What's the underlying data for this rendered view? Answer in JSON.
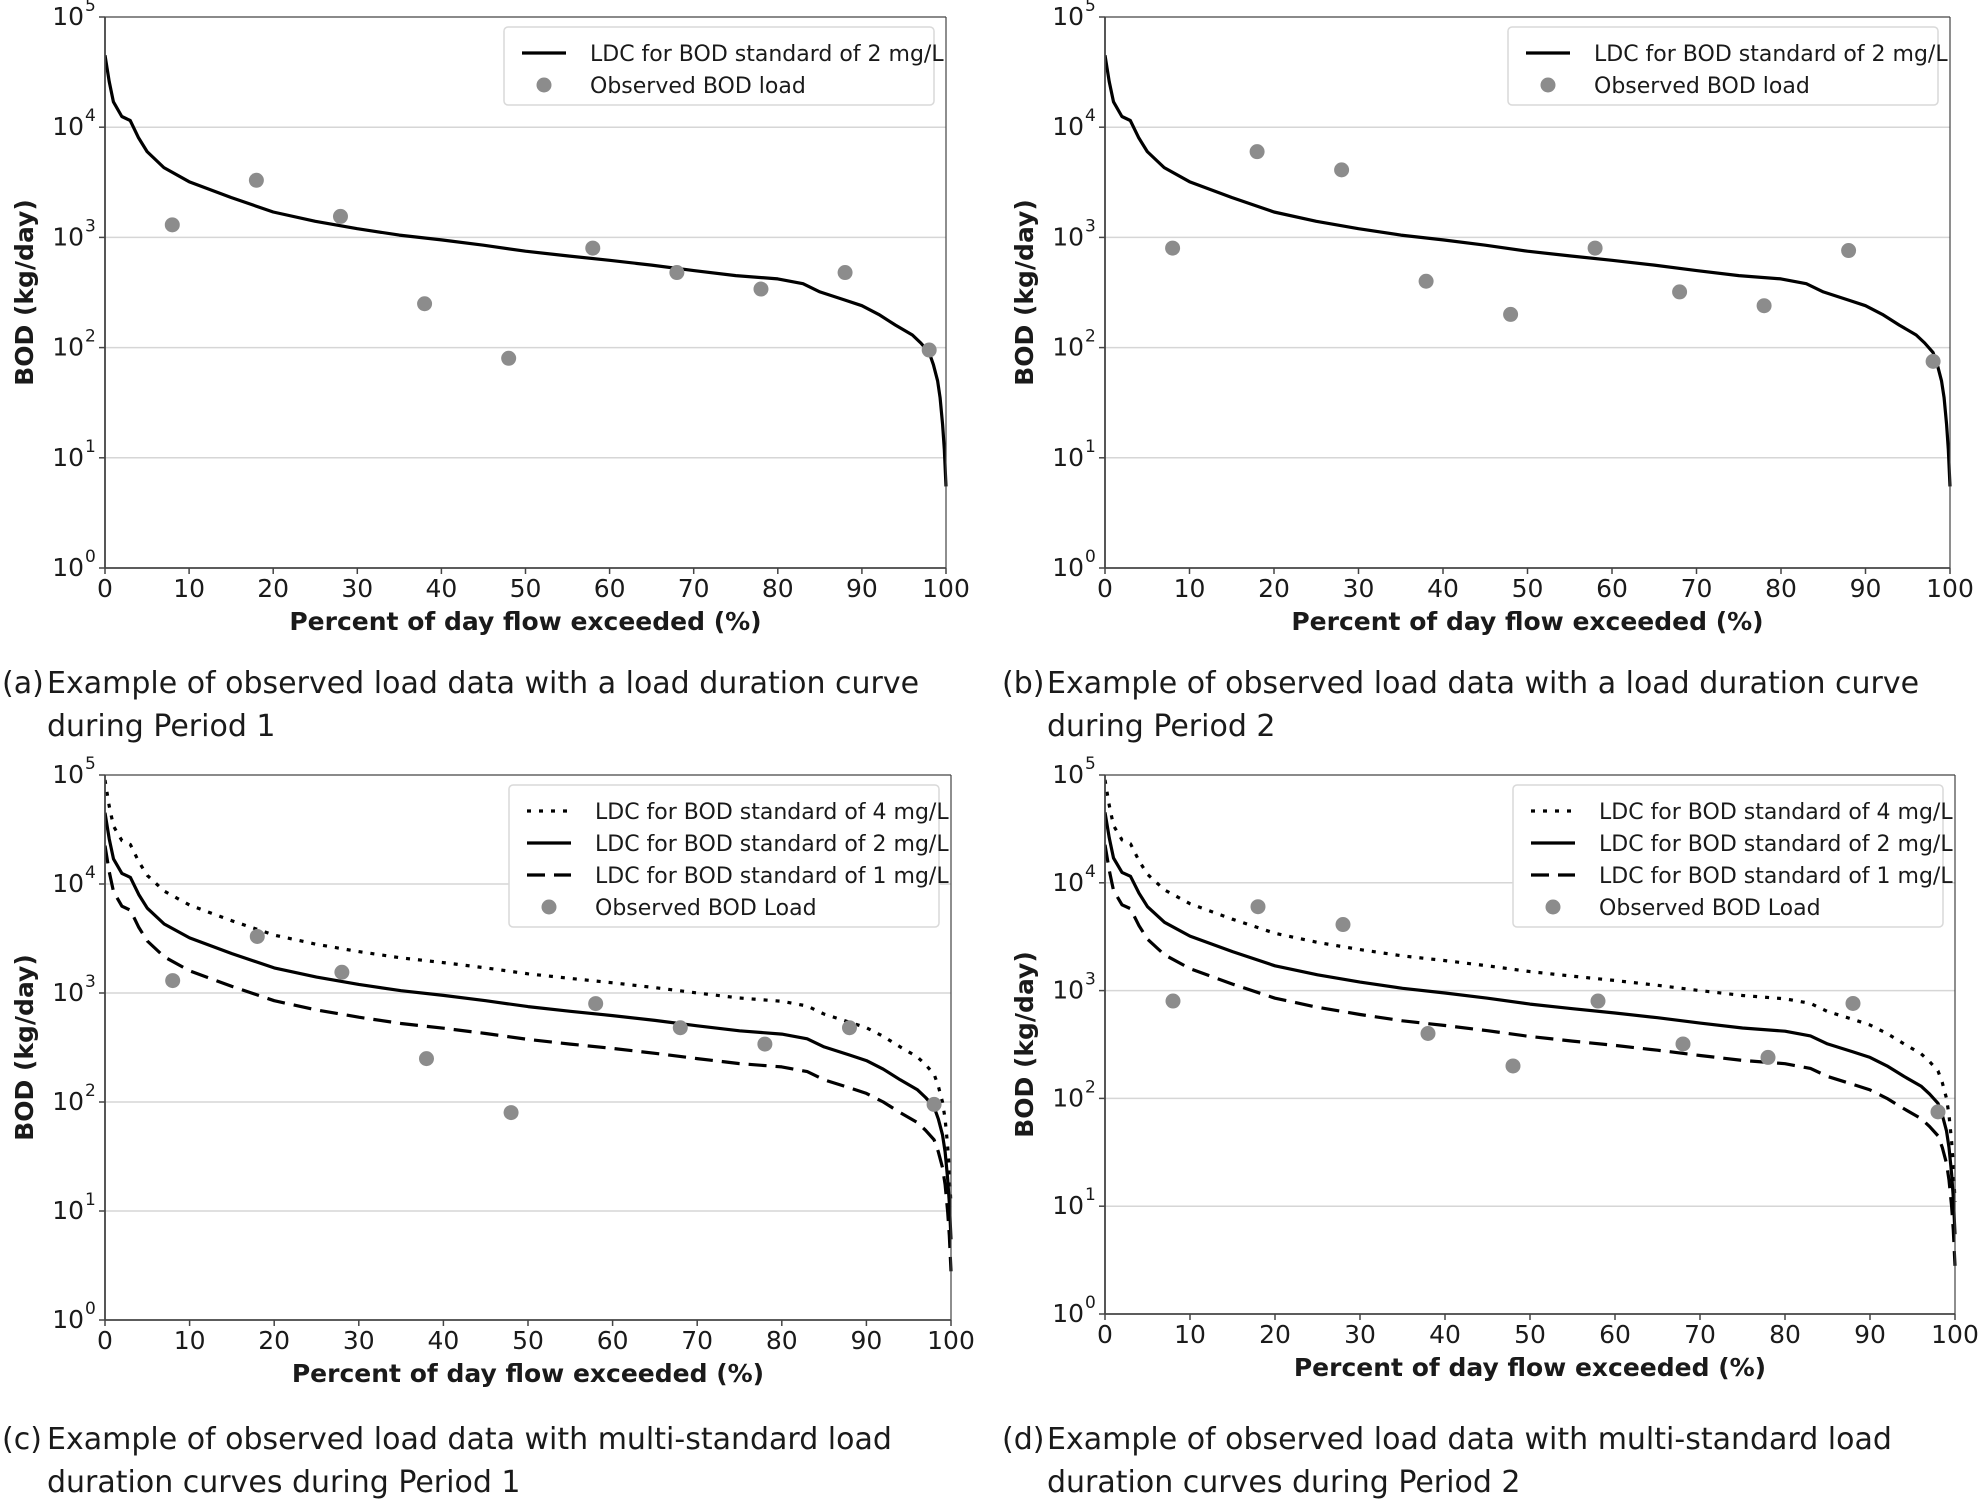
{
  "captions": [
    {
      "tag": "(a)",
      "text": "Example of observed load data with a load duration curve during Period 1"
    },
    {
      "tag": "(b)",
      "text": "Example of observed load data with a load duration curve during Period 2"
    },
    {
      "tag": "(c)",
      "text": "Example of observed load data with multi-standard load duration curves during Period 1"
    },
    {
      "tag": "(d)",
      "text": "Example of observed load data with multi-standard load duration curves during Period 2"
    }
  ],
  "colors": {
    "curve": "#000000",
    "points": "#8c8c8c",
    "grid": "#d6d6d6",
    "frame": "#444444"
  },
  "chart_data": [
    {
      "id": "a",
      "type": "line",
      "xlabel": "Percent of day flow exceeded (%)",
      "ylabel": "BOD (kg/day)",
      "xlim": [
        0,
        100
      ],
      "ylim": [
        1,
        100000
      ],
      "y_scale": "log",
      "x_ticks": [
        "0",
        "10",
        "20",
        "30",
        "40",
        "50",
        "60",
        "70",
        "80",
        "90",
        "100"
      ],
      "y_ticks": [
        {
          "base": "10",
          "exp": "0"
        },
        {
          "base": "10",
          "exp": "1"
        },
        {
          "base": "10",
          "exp": "2"
        },
        {
          "base": "10",
          "exp": "3"
        },
        {
          "base": "10",
          "exp": "4"
        },
        {
          "base": "10",
          "exp": "5"
        }
      ],
      "grid": "horizontal",
      "legend_position": "top-right",
      "series": [
        {
          "name": "LDC for BOD standard of 2 mg/L",
          "kind": "line",
          "style": "solid",
          "x": [
            0,
            0.5,
            1,
            2,
            3,
            4,
            5,
            7,
            10,
            15,
            20,
            25,
            30,
            35,
            40,
            45,
            50,
            55,
            60,
            65,
            70,
            75,
            80,
            83,
            85,
            88,
            90,
            92,
            94,
            96,
            97,
            98,
            98.5,
            99,
            99.3,
            99.6,
            99.8,
            100
          ],
          "y": [
            45000,
            26000,
            17000,
            12500,
            11500,
            8000,
            6000,
            4300,
            3200,
            2300,
            1700,
            1400,
            1200,
            1050,
            950,
            850,
            750,
            680,
            620,
            560,
            500,
            450,
            420,
            380,
            320,
            270,
            240,
            200,
            160,
            130,
            110,
            90,
            70,
            50,
            35,
            20,
            12,
            5.5
          ]
        },
        {
          "name": "Observed BOD load",
          "kind": "scatter",
          "x": [
            8,
            18,
            28,
            38,
            48,
            58,
            68,
            78,
            88,
            98
          ],
          "y": [
            1300,
            3300,
            1550,
            250,
            80,
            800,
            480,
            340,
            480,
            95
          ]
        }
      ]
    },
    {
      "id": "b",
      "type": "line",
      "xlabel": "Percent of day flow exceeded (%)",
      "ylabel": "BOD (kg/day)",
      "xlim": [
        0,
        100
      ],
      "ylim": [
        1,
        100000
      ],
      "y_scale": "log",
      "x_ticks": [
        "0",
        "10",
        "20",
        "30",
        "40",
        "50",
        "60",
        "70",
        "80",
        "90",
        "100"
      ],
      "y_ticks": [
        {
          "base": "10",
          "exp": "0"
        },
        {
          "base": "10",
          "exp": "1"
        },
        {
          "base": "10",
          "exp": "2"
        },
        {
          "base": "10",
          "exp": "3"
        },
        {
          "base": "10",
          "exp": "4"
        },
        {
          "base": "10",
          "exp": "5"
        }
      ],
      "grid": "horizontal",
      "legend_position": "top-right",
      "series": [
        {
          "name": "LDC for BOD standard of 2 mg/L",
          "kind": "line",
          "style": "solid",
          "x": [
            0,
            0.5,
            1,
            2,
            3,
            4,
            5,
            7,
            10,
            15,
            20,
            25,
            30,
            35,
            40,
            45,
            50,
            55,
            60,
            65,
            70,
            75,
            80,
            83,
            85,
            88,
            90,
            92,
            94,
            96,
            97,
            98,
            98.5,
            99,
            99.3,
            99.6,
            99.8,
            100
          ],
          "y": [
            45000,
            26000,
            17000,
            12500,
            11500,
            8000,
            6000,
            4300,
            3200,
            2300,
            1700,
            1400,
            1200,
            1050,
            950,
            850,
            750,
            680,
            620,
            560,
            500,
            450,
            420,
            380,
            320,
            270,
            240,
            200,
            160,
            130,
            110,
            90,
            70,
            50,
            35,
            20,
            12,
            5.5
          ]
        },
        {
          "name": "Observed BOD load",
          "kind": "scatter",
          "x": [
            8,
            18,
            28,
            38,
            48,
            58,
            68,
            78,
            88,
            98
          ],
          "y": [
            800,
            6000,
            4100,
            400,
            200,
            800,
            320,
            240,
            760,
            75
          ]
        }
      ]
    },
    {
      "id": "c",
      "type": "line",
      "xlabel": "Percent of day flow exceeded (%)",
      "ylabel": "BOD (kg/day)",
      "xlim": [
        0,
        100
      ],
      "ylim": [
        1,
        100000
      ],
      "y_scale": "log",
      "x_ticks": [
        "0",
        "10",
        "20",
        "30",
        "40",
        "50",
        "60",
        "70",
        "80",
        "90",
        "100"
      ],
      "y_ticks": [
        {
          "base": "10",
          "exp": "0"
        },
        {
          "base": "10",
          "exp": "1"
        },
        {
          "base": "10",
          "exp": "2"
        },
        {
          "base": "10",
          "exp": "3"
        },
        {
          "base": "10",
          "exp": "4"
        },
        {
          "base": "10",
          "exp": "5"
        }
      ],
      "grid": "horizontal",
      "legend_position": "top-right",
      "series": [
        {
          "name": "LDC for BOD standard of 4 mg/L",
          "kind": "line",
          "style": "dotted",
          "x": [
            0,
            0.5,
            1,
            2,
            3,
            4,
            5,
            7,
            10,
            15,
            20,
            25,
            30,
            35,
            40,
            45,
            50,
            55,
            60,
            65,
            70,
            75,
            80,
            83,
            85,
            88,
            90,
            92,
            94,
            96,
            97,
            98,
            98.5,
            99,
            99.3,
            99.6,
            99.8,
            100
          ],
          "y": [
            90000,
            52000,
            34000,
            25000,
            23000,
            16000,
            12000,
            8600,
            6400,
            4600,
            3400,
            2800,
            2400,
            2100,
            1900,
            1700,
            1500,
            1360,
            1240,
            1120,
            1000,
            900,
            840,
            760,
            640,
            540,
            480,
            400,
            320,
            260,
            220,
            180,
            140,
            100,
            70,
            40,
            24,
            11
          ]
        },
        {
          "name": "LDC for BOD standard of 2 mg/L",
          "kind": "line",
          "style": "solid",
          "x": [
            0,
            0.5,
            1,
            2,
            3,
            4,
            5,
            7,
            10,
            15,
            20,
            25,
            30,
            35,
            40,
            45,
            50,
            55,
            60,
            65,
            70,
            75,
            80,
            83,
            85,
            88,
            90,
            92,
            94,
            96,
            97,
            98,
            98.5,
            99,
            99.3,
            99.6,
            99.8,
            100
          ],
          "y": [
            45000,
            26000,
            17000,
            12500,
            11500,
            8000,
            6000,
            4300,
            3200,
            2300,
            1700,
            1400,
            1200,
            1050,
            950,
            850,
            750,
            680,
            620,
            560,
            500,
            450,
            420,
            380,
            320,
            270,
            240,
            200,
            160,
            130,
            110,
            90,
            70,
            50,
            35,
            20,
            12,
            5.5
          ]
        },
        {
          "name": "LDC for BOD standard of 1 mg/L",
          "kind": "line",
          "style": "dashed",
          "x": [
            0,
            0.5,
            1,
            2,
            3,
            4,
            5,
            7,
            10,
            15,
            20,
            25,
            30,
            35,
            40,
            45,
            50,
            55,
            60,
            65,
            70,
            75,
            80,
            83,
            85,
            88,
            90,
            92,
            94,
            96,
            97,
            98,
            98.5,
            99,
            99.3,
            99.6,
            99.8,
            100
          ],
          "y": [
            22500,
            13000,
            8500,
            6250,
            5750,
            4000,
            3000,
            2150,
            1600,
            1150,
            850,
            700,
            600,
            525,
            475,
            425,
            375,
            340,
            310,
            280,
            250,
            225,
            210,
            190,
            160,
            135,
            120,
            100,
            80,
            65,
            55,
            45,
            35,
            25,
            17.5,
            10,
            6,
            2.8
          ]
        },
        {
          "name": "Observed BOD Load",
          "kind": "scatter",
          "x": [
            8,
            18,
            28,
            38,
            48,
            58,
            68,
            78,
            88,
            98
          ],
          "y": [
            1300,
            3300,
            1550,
            250,
            80,
            800,
            480,
            340,
            480,
            95
          ]
        }
      ]
    },
    {
      "id": "d",
      "type": "line",
      "xlabel": "Percent of day flow exceeded (%)",
      "ylabel": "BOD (kg/day)",
      "xlim": [
        0,
        100
      ],
      "ylim": [
        1,
        100000
      ],
      "y_scale": "log",
      "x_ticks": [
        "0",
        "10",
        "20",
        "30",
        "40",
        "50",
        "60",
        "70",
        "80",
        "90",
        "100"
      ],
      "y_ticks": [
        {
          "base": "10",
          "exp": "0"
        },
        {
          "base": "10",
          "exp": "1"
        },
        {
          "base": "10",
          "exp": "2"
        },
        {
          "base": "10",
          "exp": "3"
        },
        {
          "base": "10",
          "exp": "4"
        },
        {
          "base": "10",
          "exp": "5"
        }
      ],
      "grid": "horizontal",
      "legend_position": "top-right",
      "series": [
        {
          "name": "LDC for BOD standard of 4 mg/L",
          "kind": "line",
          "style": "dotted",
          "x": [
            0,
            0.5,
            1,
            2,
            3,
            4,
            5,
            7,
            10,
            15,
            20,
            25,
            30,
            35,
            40,
            45,
            50,
            55,
            60,
            65,
            70,
            75,
            80,
            83,
            85,
            88,
            90,
            92,
            94,
            96,
            97,
            98,
            98.5,
            99,
            99.3,
            99.6,
            99.8,
            100
          ],
          "y": [
            90000,
            52000,
            34000,
            25000,
            23000,
            16000,
            12000,
            8600,
            6400,
            4600,
            3400,
            2800,
            2400,
            2100,
            1900,
            1700,
            1500,
            1360,
            1240,
            1120,
            1000,
            900,
            840,
            760,
            640,
            540,
            480,
            400,
            320,
            260,
            220,
            180,
            140,
            100,
            70,
            40,
            24,
            11
          ]
        },
        {
          "name": "LDC for BOD standard of 2 mg/L",
          "kind": "line",
          "style": "solid",
          "x": [
            0,
            0.5,
            1,
            2,
            3,
            4,
            5,
            7,
            10,
            15,
            20,
            25,
            30,
            35,
            40,
            45,
            50,
            55,
            60,
            65,
            70,
            75,
            80,
            83,
            85,
            88,
            90,
            92,
            94,
            96,
            97,
            98,
            98.5,
            99,
            99.3,
            99.6,
            99.8,
            100
          ],
          "y": [
            45000,
            26000,
            17000,
            12500,
            11500,
            8000,
            6000,
            4300,
            3200,
            2300,
            1700,
            1400,
            1200,
            1050,
            950,
            850,
            750,
            680,
            620,
            560,
            500,
            450,
            420,
            380,
            320,
            270,
            240,
            200,
            160,
            130,
            110,
            90,
            70,
            50,
            35,
            20,
            12,
            5.5
          ]
        },
        {
          "name": "LDC for BOD standard of 1 mg/L",
          "kind": "line",
          "style": "dashed",
          "x": [
            0,
            0.5,
            1,
            2,
            3,
            4,
            5,
            7,
            10,
            15,
            20,
            25,
            30,
            35,
            40,
            45,
            50,
            55,
            60,
            65,
            70,
            75,
            80,
            83,
            85,
            88,
            90,
            92,
            94,
            96,
            97,
            98,
            98.5,
            99,
            99.3,
            99.6,
            99.8,
            100
          ],
          "y": [
            22500,
            13000,
            8500,
            6250,
            5750,
            4000,
            3000,
            2150,
            1600,
            1150,
            850,
            700,
            600,
            525,
            475,
            425,
            375,
            340,
            310,
            280,
            250,
            225,
            210,
            190,
            160,
            135,
            120,
            100,
            80,
            65,
            55,
            45,
            35,
            25,
            17.5,
            10,
            6,
            2.8
          ]
        },
        {
          "name": "Observed BOD Load",
          "kind": "scatter",
          "x": [
            8,
            18,
            28,
            38,
            48,
            58,
            68,
            78,
            88,
            98
          ],
          "y": [
            800,
            6000,
            4100,
            400,
            200,
            800,
            320,
            240,
            760,
            75
          ]
        }
      ]
    }
  ]
}
